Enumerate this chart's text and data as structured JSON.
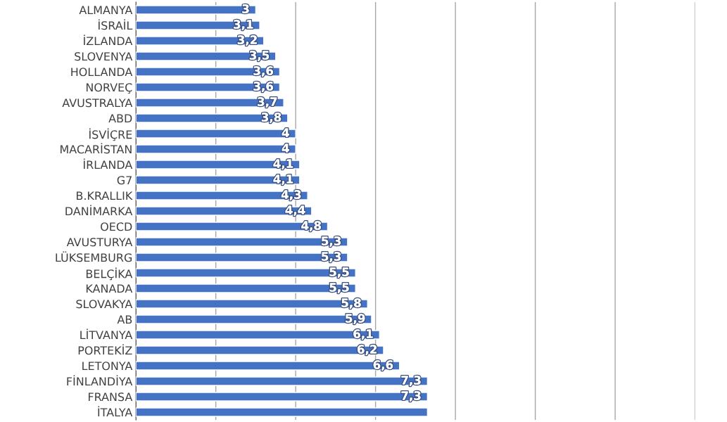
{
  "chart_data": {
    "type": "bar",
    "orientation": "horizontal",
    "categories": [
      "ALMANYA",
      "İSRAİL",
      "İZLANDA",
      "SLOVENYA",
      "HOLLANDA",
      "NORVEÇ",
      "AVUSTRALYA",
      "ABD",
      "İSVİÇRE",
      "MACARİSTAN",
      "İRLANDA",
      "G7",
      "B.KRALLIK",
      "DANİMARKA",
      "OECD",
      "AVUSTURYA",
      "LÜKSEMBURG",
      "BELÇİKA",
      "KANADA",
      "SLOVAKYA",
      "AB",
      "LİTVANYA",
      "PORTEKİZ",
      "LETONYA",
      "FİNLANDİYA",
      "FRANSA",
      "İTALYA"
    ],
    "values": [
      3,
      3.1,
      3.2,
      3.5,
      3.6,
      3.6,
      3.7,
      3.8,
      4,
      4,
      4.1,
      4.1,
      4.3,
      4.4,
      4.8,
      5.3,
      5.3,
      5.5,
      5.5,
      5.8,
      5.9,
      6.1,
      6.2,
      6.6,
      7.3,
      7.3,
      7.3
    ],
    "value_labels": [
      "3",
      "3,1",
      "3,2",
      "3,5",
      "3,6",
      "3,6",
      "3,7",
      "3,8",
      "4",
      "4",
      "4,1",
      "4,1",
      "4,3",
      "4,4",
      "4,8",
      "5,3",
      "5,3",
      "5,5",
      "5,5",
      "5,8",
      "5,9",
      "6,1",
      "6,2",
      "6,6",
      "7,3",
      "7,3",
      null
    ],
    "color": "#4472c4",
    "xticks": [
      {
        "value": 0,
        "label": null
      },
      {
        "value": 2,
        "label": null
      },
      {
        "value": 4,
        "label": null
      },
      {
        "value": 6,
        "label": null
      },
      {
        "value": 8,
        "label": null
      },
      {
        "value": 10,
        "label": null
      },
      {
        "value": 12,
        "label": null
      },
      {
        "value": 14,
        "label": null
      }
    ],
    "grid": "x",
    "tick_labels": "y"
  }
}
